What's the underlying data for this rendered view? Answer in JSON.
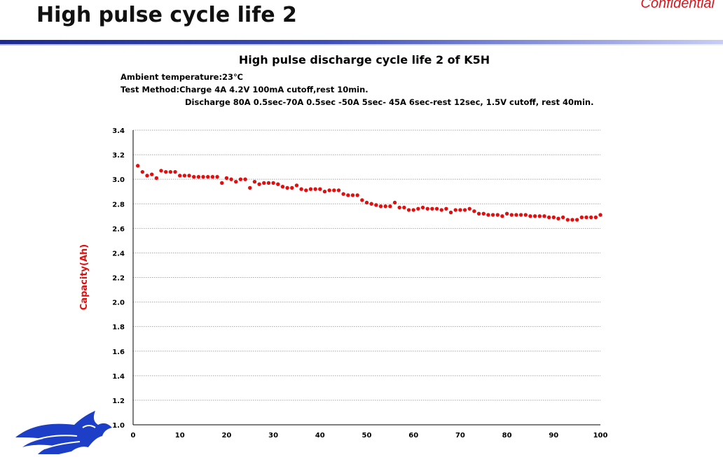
{
  "slide": {
    "title": "High pulse cycle life 2",
    "confidential": "Confidential"
  },
  "chart_notes": {
    "ambient": "Ambient temperature:23℃",
    "test_method": "Test Method:Charge 4A 4.2V 100mA cutoff,rest 10min.",
    "discharge": "Discharge   80A 0.5sec-70A 0.5sec -50A 5sec- 45A 6sec-rest 12sec, 1.5V cutoff, rest 40min."
  },
  "logo": {
    "icon": "dragon-logo-icon",
    "color": "#1d3fc8"
  },
  "colors": {
    "series": "#e01010",
    "ylabel": "#e01010",
    "grid": "#a8a8a8",
    "axis": "#000000"
  },
  "chart_data": {
    "type": "scatter",
    "title": "High pulse discharge cycle life 2 of K5H",
    "xlabel": "",
    "ylabel": "Capacity(Ah)",
    "xlim": [
      0,
      100
    ],
    "ylim": [
      1.0,
      3.4
    ],
    "xticks": [
      0,
      10,
      20,
      30,
      40,
      50,
      60,
      70,
      80,
      90,
      100
    ],
    "yticks": [
      "1.0",
      "1.2",
      "1.4",
      "1.6",
      "1.8",
      "2.0",
      "2.2",
      "2.4",
      "2.6",
      "2.8",
      "3.0",
      "3.2",
      "3.4"
    ],
    "grid": "horizontal",
    "legend": "none",
    "series": [
      {
        "x": [
          1,
          2,
          3,
          4,
          5,
          6,
          7,
          8,
          9,
          10,
          11,
          12,
          13,
          14,
          15,
          16,
          17,
          18,
          19,
          20,
          21,
          22,
          23,
          24,
          25,
          26,
          27,
          28,
          29,
          30,
          31,
          32,
          33,
          34,
          35,
          36,
          37,
          38,
          39,
          40,
          41,
          42,
          43,
          44,
          45,
          46,
          47,
          48,
          49,
          50,
          51,
          52,
          53,
          54,
          55,
          56,
          57,
          58,
          59,
          60,
          61,
          62,
          63,
          64,
          65,
          66,
          67,
          68,
          69,
          70,
          71,
          72,
          73,
          74,
          75,
          76,
          77,
          78,
          79,
          80,
          81,
          82,
          83,
          84,
          85,
          86,
          87,
          88,
          89,
          90,
          91,
          92,
          93,
          94,
          95,
          96,
          97,
          98,
          99,
          100
        ],
        "values": [
          3.11,
          3.06,
          3.03,
          3.04,
          3.01,
          3.07,
          3.06,
          3.06,
          3.06,
          3.03,
          3.03,
          3.03,
          3.02,
          3.02,
          3.02,
          3.02,
          3.02,
          3.02,
          2.97,
          3.01,
          3.0,
          2.98,
          3.0,
          3.0,
          2.93,
          2.98,
          2.96,
          2.97,
          2.97,
          2.97,
          2.96,
          2.94,
          2.93,
          2.93,
          2.95,
          2.92,
          2.91,
          2.92,
          2.92,
          2.92,
          2.9,
          2.91,
          2.91,
          2.91,
          2.88,
          2.87,
          2.87,
          2.87,
          2.83,
          2.81,
          2.8,
          2.79,
          2.78,
          2.78,
          2.78,
          2.81,
          2.77,
          2.77,
          2.75,
          2.75,
          2.76,
          2.77,
          2.76,
          2.76,
          2.76,
          2.75,
          2.76,
          2.73,
          2.75,
          2.75,
          2.75,
          2.76,
          2.74,
          2.72,
          2.72,
          2.71,
          2.71,
          2.71,
          2.7,
          2.72,
          2.71,
          2.71,
          2.71,
          2.71,
          2.7,
          2.7,
          2.7,
          2.7,
          2.69,
          2.69,
          2.68,
          2.69,
          2.67,
          2.67,
          2.67,
          2.69,
          2.69,
          2.69,
          2.69,
          2.71
        ]
      }
    ]
  }
}
